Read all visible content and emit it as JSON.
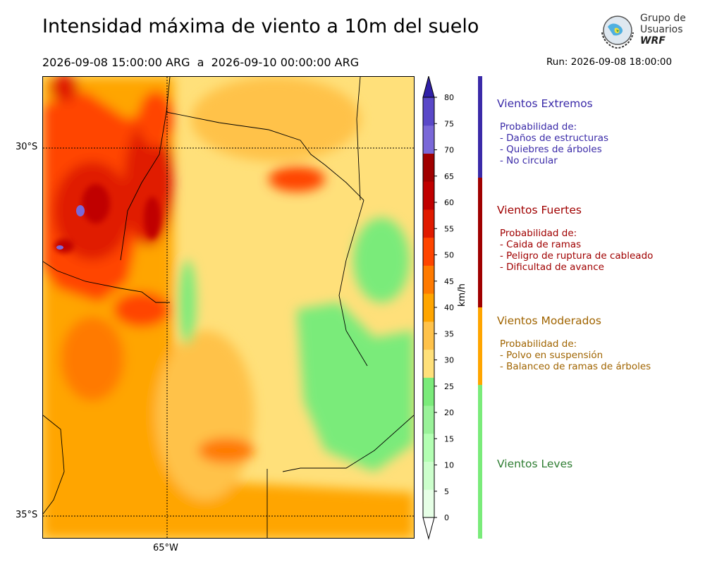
{
  "title": "Intensidad máxima de viento a 10m del suelo",
  "date_range": "2026-09-08 15:00:00 ARG  a  2026-09-10 00:00:00 ARG",
  "run_info": "Run: 2026-09-08 18:00:00",
  "logo": {
    "line1": "Grupo de",
    "line2": "Usuarios",
    "line3": "WRF"
  },
  "axes": {
    "lat_labels": [
      "30°S",
      "35°S"
    ],
    "lon_labels": [
      "65°W"
    ]
  },
  "colorbar": {
    "unit": "km/h",
    "ticks": [
      "0",
      "5",
      "10",
      "15",
      "20",
      "25",
      "30",
      "35",
      "40",
      "45",
      "50",
      "55",
      "60",
      "65",
      "70",
      "75",
      "80"
    ],
    "colors": [
      "#e6ffe6",
      "#ccffcc",
      "#b3ffb3",
      "#99f299",
      "#7aeb7a",
      "#ffe07a",
      "#ffc24a",
      "#ffa500",
      "#ff7a00",
      "#ff4500",
      "#e01a00",
      "#c00000",
      "#a00000",
      "#7a68d8",
      "#5a48c8",
      "#4030b8",
      "#3020a8"
    ]
  },
  "categories": [
    {
      "title": "Vientos Extremos",
      "color": "#3a2aa8",
      "desc_lines": [
        "Probabilidad de:",
        "- Daños de estructuras",
        "- Quiebres de árboles",
        "- No circular"
      ]
    },
    {
      "title": "Vientos Fuertes",
      "color": "#a00000",
      "desc_lines": [
        "Probabilidad de:",
        "- Caida de ramas",
        "- Peligro de ruptura de cableado",
        "- Dificultad de avance"
      ]
    },
    {
      "title": "Vientos Moderados",
      "color": "#a06400",
      "desc_lines": [
        "Probabilidad de:",
        "- Polvo en suspensión",
        "- Balanceo de ramas de árboles"
      ]
    },
    {
      "title": "Vientos Leves",
      "color": "#2e7d32",
      "desc_lines": []
    }
  ],
  "category_bar_colors": [
    "#3a2aa8",
    "#a00000",
    "#ffa500",
    "#7aeb7a"
  ]
}
